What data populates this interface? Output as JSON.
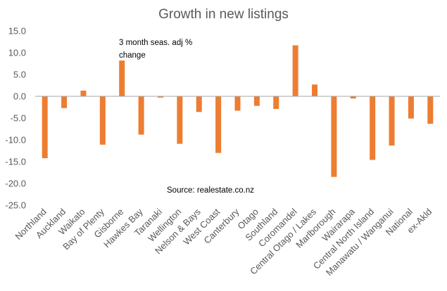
{
  "chart_data": {
    "type": "bar",
    "title": "Growth in new listings",
    "annotation_lines": [
      "3 month seas. adj %",
      "change"
    ],
    "source": "Source: realestate.co.nz",
    "ylim": [
      -25,
      15
    ],
    "yticks": [
      "15.0",
      "10.0",
      "5.0",
      "0.0",
      "-5.0",
      "-10.0",
      "-15.0",
      "-20.0",
      "-25.0"
    ],
    "grid": false,
    "legend": "none",
    "bar_color": "#ED7D31",
    "categories": [
      "Northland",
      "Auckland",
      "Waikato",
      "Bay of Plenty",
      "Gisborne",
      "Hawkes Bay",
      "Taranaki",
      "Wellington",
      "Nelson & Bays",
      "West Coast",
      "Canterbury",
      "Otago",
      "Southland",
      "Coromandel",
      "Central Otago / Lakes",
      "Marlborough",
      "Wairarapa",
      "Central North Island",
      "Manawatu / Wanganui",
      "National",
      "ex-Akld"
    ],
    "values": [
      -14.2,
      -2.7,
      1.3,
      -11.1,
      8.2,
      -8.8,
      -0.3,
      -10.9,
      -3.6,
      -13.0,
      -3.3,
      -2.2,
      -2.9,
      11.7,
      2.7,
      -18.5,
      -0.5,
      -14.6,
      -11.3,
      -5.1,
      -6.3
    ]
  }
}
